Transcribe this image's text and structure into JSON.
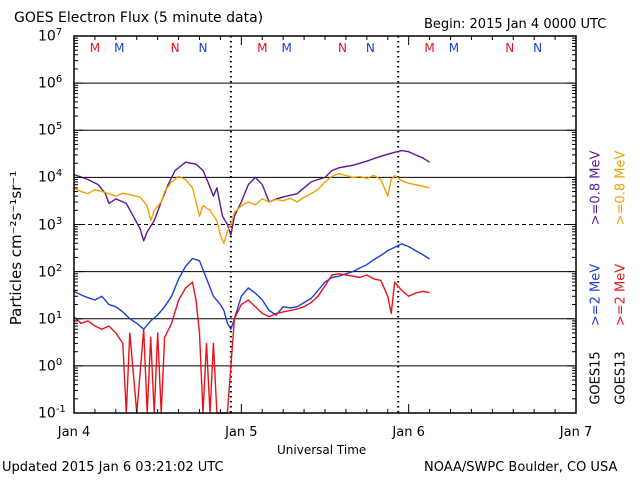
{
  "header": {
    "title": "GOES Electron Flux (5 minute data)",
    "begin": "Begin: 2015 Jan 4 0000 UTC"
  },
  "footer": {
    "updated": "Updated 2015 Jan  6 03:21:02 UTC",
    "credit": "NOAA/SWPC Boulder, CO USA"
  },
  "chart_data": {
    "type": "line",
    "title": "GOES Electron Flux (5 minute data)",
    "xlabel": "Universal Time",
    "ylabel": "Particles cm⁻²s⁻¹sr⁻¹",
    "yscale": "log",
    "ylim": [
      0.1,
      10000000
    ],
    "xlim": [
      0,
      72
    ],
    "x_unit": "hours since 2015 Jan 4 0000 UTC",
    "x_ticks": [
      {
        "x": 0,
        "label": "Jan 4"
      },
      {
        "x": 24,
        "label": "Jan 5"
      },
      {
        "x": 48,
        "label": "Jan 6"
      },
      {
        "x": 72,
        "label": "Jan 7"
      }
    ],
    "y_ticks": [
      {
        "value": 10000000,
        "base": "10",
        "exp": "7"
      },
      {
        "value": 1000000,
        "base": "10",
        "exp": "6"
      },
      {
        "value": 100000,
        "base": "10",
        "exp": "5"
      },
      {
        "value": 10000,
        "base": "10",
        "exp": "4"
      },
      {
        "value": 1000,
        "base": "10",
        "exp": "3"
      },
      {
        "value": 100,
        "base": "10",
        "exp": "2"
      },
      {
        "value": 10,
        "base": "10",
        "exp": "1"
      },
      {
        "value": 1,
        "base": "10",
        "exp": "0"
      },
      {
        "value": 0.1,
        "base": "10",
        "exp": "-1"
      }
    ],
    "threshold_line": 1000,
    "marker_rows": [
      {
        "x": 3,
        "label": "M",
        "color": "#e8121b"
      },
      {
        "x": 6.5,
        "label": "M",
        "color": "#1a3fd6"
      },
      {
        "x": 14.5,
        "label": "N",
        "color": "#e8121b"
      },
      {
        "x": 18.5,
        "label": "N",
        "color": "#1a3fd6"
      },
      {
        "x": 27,
        "label": "M",
        "color": "#e8121b"
      },
      {
        "x": 30.5,
        "label": "M",
        "color": "#1a3fd6"
      },
      {
        "x": 38.5,
        "label": "N",
        "color": "#e8121b"
      },
      {
        "x": 42.5,
        "label": "N",
        "color": "#1a3fd6"
      },
      {
        "x": 51,
        "label": "M",
        "color": "#e8121b"
      },
      {
        "x": 54.5,
        "label": "M",
        "color": "#1a3fd6"
      },
      {
        "x": 62.5,
        "label": "N",
        "color": "#e8121b"
      },
      {
        "x": 66.5,
        "label": "N",
        "color": "#1a3fd6"
      }
    ],
    "dotted_verticals": [
      22.5,
      46.5
    ],
    "legend": {
      "sat1": "GOES15",
      "sat2": "GOES13",
      "e08_15": ">=0.8 MeV",
      "e08_13": ">=0.8 MeV",
      "e2_15": ">=2 MeV",
      "e2_13": ">=2 MeV"
    },
    "colors": {
      "g15_08": "#5a189a",
      "g13_08": "#f0a000",
      "g15_2": "#1a3fd6",
      "g13_2": "#e8121b"
    },
    "series": [
      {
        "name": "GOES15 >=0.8 MeV",
        "color_key": "g15_08",
        "points": [
          [
            0,
            11500
          ],
          [
            2,
            9000
          ],
          [
            3.5,
            7000
          ],
          [
            4.5,
            4500
          ],
          [
            5,
            2800
          ],
          [
            6,
            3500
          ],
          [
            7.5,
            2800
          ],
          [
            8.5,
            1500
          ],
          [
            9.5,
            800
          ],
          [
            10,
            450
          ],
          [
            10.5,
            700
          ],
          [
            11.5,
            1200
          ],
          [
            12.5,
            3000
          ],
          [
            13.5,
            7000
          ],
          [
            14.5,
            14000
          ],
          [
            16,
            21000
          ],
          [
            17.5,
            19000
          ],
          [
            18.5,
            14000
          ],
          [
            19.2,
            8000
          ],
          [
            20,
            4000
          ],
          [
            20.5,
            6000
          ],
          [
            21.3,
            1500
          ],
          [
            22,
            1000
          ],
          [
            22.5,
            600
          ],
          [
            23,
            1500
          ],
          [
            24,
            3000
          ],
          [
            25,
            7000
          ],
          [
            26,
            10000
          ],
          [
            27,
            7000
          ],
          [
            28,
            3000
          ],
          [
            29,
            3500
          ],
          [
            30.5,
            4000
          ],
          [
            32,
            4500
          ],
          [
            33,
            6000
          ],
          [
            34,
            8000
          ],
          [
            35,
            9000
          ],
          [
            36,
            10000
          ],
          [
            37,
            14000
          ],
          [
            38,
            16000
          ],
          [
            39,
            17000
          ],
          [
            40,
            18000
          ],
          [
            41,
            20000
          ],
          [
            42,
            22000
          ],
          [
            43,
            25000
          ],
          [
            44,
            28000
          ],
          [
            45,
            31000
          ],
          [
            46,
            34000
          ],
          [
            47,
            37000
          ],
          [
            48,
            35000
          ],
          [
            49,
            30000
          ],
          [
            50,
            26000
          ],
          [
            51,
            21000
          ]
        ]
      },
      {
        "name": "GOES13 >=0.8 MeV",
        "color_key": "g13_08",
        "points": [
          [
            0,
            6000
          ],
          [
            1,
            5000
          ],
          [
            2,
            4500
          ],
          [
            3,
            5500
          ],
          [
            4,
            5000
          ],
          [
            5,
            4500
          ],
          [
            6,
            4000
          ],
          [
            7,
            4600
          ],
          [
            8,
            4300
          ],
          [
            9.5,
            3800
          ],
          [
            10.5,
            2500
          ],
          [
            11,
            1200
          ],
          [
            11.5,
            2000
          ],
          [
            12.5,
            3000
          ],
          [
            13,
            5000
          ],
          [
            14,
            8000
          ],
          [
            15,
            10500
          ],
          [
            16,
            9000
          ],
          [
            17,
            6000
          ],
          [
            17.5,
            3000
          ],
          [
            18,
            1500
          ],
          [
            18.5,
            2500
          ],
          [
            19.5,
            2000
          ],
          [
            20.5,
            1200
          ],
          [
            21,
            600
          ],
          [
            21.5,
            400
          ],
          [
            22,
            700
          ],
          [
            22.5,
            1000
          ],
          [
            23,
            1800
          ],
          [
            24,
            2500
          ],
          [
            25,
            3000
          ],
          [
            26,
            2600
          ],
          [
            27,
            3500
          ],
          [
            28,
            3000
          ],
          [
            29,
            3400
          ],
          [
            30,
            3200
          ],
          [
            31,
            3600
          ],
          [
            32,
            3000
          ],
          [
            33,
            3800
          ],
          [
            34,
            4500
          ],
          [
            35,
            5500
          ],
          [
            36,
            8000
          ],
          [
            37,
            10500
          ],
          [
            38,
            12000
          ],
          [
            39,
            11000
          ],
          [
            40,
            10000
          ],
          [
            41,
            10500
          ],
          [
            42,
            9500
          ],
          [
            43,
            11000
          ],
          [
            44,
            9000
          ],
          [
            45,
            4000
          ],
          [
            45.5,
            9000
          ],
          [
            46,
            11000
          ],
          [
            47,
            8500
          ],
          [
            48,
            7500
          ],
          [
            49,
            7000
          ],
          [
            50,
            6500
          ],
          [
            51,
            6000
          ]
        ]
      },
      {
        "name": "GOES15 >=2 MeV",
        "color_key": "g15_2",
        "points": [
          [
            0,
            38
          ],
          [
            1,
            32
          ],
          [
            2,
            28
          ],
          [
            3,
            25
          ],
          [
            4,
            30
          ],
          [
            5,
            20
          ],
          [
            6,
            18
          ],
          [
            7,
            14
          ],
          [
            8,
            10
          ],
          [
            9,
            8
          ],
          [
            10,
            6
          ],
          [
            11,
            9
          ],
          [
            12,
            12
          ],
          [
            13,
            18
          ],
          [
            14,
            30
          ],
          [
            15,
            70
          ],
          [
            16,
            130
          ],
          [
            17,
            190
          ],
          [
            18,
            170
          ],
          [
            18.5,
            110
          ],
          [
            19.2,
            60
          ],
          [
            20,
            30
          ],
          [
            21,
            20
          ],
          [
            21.5,
            15
          ],
          [
            22,
            8
          ],
          [
            22.5,
            6
          ],
          [
            23,
            10
          ],
          [
            24,
            30
          ],
          [
            25,
            45
          ],
          [
            26,
            35
          ],
          [
            27,
            25
          ],
          [
            28,
            15
          ],
          [
            29,
            12
          ],
          [
            30,
            18
          ],
          [
            31,
            17
          ],
          [
            32,
            18
          ],
          [
            33,
            22
          ],
          [
            34,
            27
          ],
          [
            35,
            40
          ],
          [
            36,
            60
          ],
          [
            37,
            75
          ],
          [
            38,
            80
          ],
          [
            39,
            90
          ],
          [
            40,
            100
          ],
          [
            41,
            120
          ],
          [
            42,
            140
          ],
          [
            43,
            180
          ],
          [
            44,
            220
          ],
          [
            45,
            280
          ],
          [
            46,
            330
          ],
          [
            47,
            390
          ],
          [
            48,
            340
          ],
          [
            49,
            280
          ],
          [
            50,
            230
          ],
          [
            51,
            185
          ]
        ]
      },
      {
        "name": "GOES13 >=2 MeV",
        "color_key": "g13_2",
        "points": [
          [
            0,
            11
          ],
          [
            1,
            8
          ],
          [
            2,
            9
          ],
          [
            3,
            7
          ],
          [
            4,
            6
          ],
          [
            5,
            7
          ],
          [
            6,
            5
          ],
          [
            7,
            3
          ],
          [
            7.5,
            0.1
          ],
          [
            8,
            5
          ],
          [
            9,
            0.1
          ],
          [
            10,
            6
          ],
          [
            10.5,
            0.1
          ],
          [
            11,
            4
          ],
          [
            11.5,
            0.1
          ],
          [
            12,
            5
          ],
          [
            12.5,
            0.1
          ],
          [
            13,
            4
          ],
          [
            14,
            8
          ],
          [
            15,
            25
          ],
          [
            16,
            45
          ],
          [
            17,
            60
          ],
          [
            17.5,
            25
          ],
          [
            18,
            5
          ],
          [
            18.5,
            0.1
          ],
          [
            19,
            3
          ],
          [
            19.5,
            0.1
          ],
          [
            20,
            3
          ],
          [
            20.5,
            0.1
          ],
          [
            21,
            0.1
          ],
          [
            22,
            0.1
          ],
          [
            22.5,
            1
          ],
          [
            23,
            10
          ],
          [
            24,
            20
          ],
          [
            25,
            25
          ],
          [
            26,
            18
          ],
          [
            27,
            13
          ],
          [
            28,
            11
          ],
          [
            29,
            13
          ],
          [
            30,
            14
          ],
          [
            31,
            15
          ],
          [
            32,
            16
          ],
          [
            33,
            18
          ],
          [
            34,
            22
          ],
          [
            35,
            30
          ],
          [
            36,
            50
          ],
          [
            37,
            85
          ],
          [
            38,
            90
          ],
          [
            39,
            85
          ],
          [
            40,
            80
          ],
          [
            41,
            75
          ],
          [
            42,
            85
          ],
          [
            43,
            70
          ],
          [
            44,
            65
          ],
          [
            45,
            30
          ],
          [
            45.5,
            13
          ],
          [
            46,
            60
          ],
          [
            47,
            40
          ],
          [
            48,
            30
          ],
          [
            49,
            35
          ],
          [
            50,
            38
          ],
          [
            51,
            36
          ]
        ]
      }
    ]
  }
}
